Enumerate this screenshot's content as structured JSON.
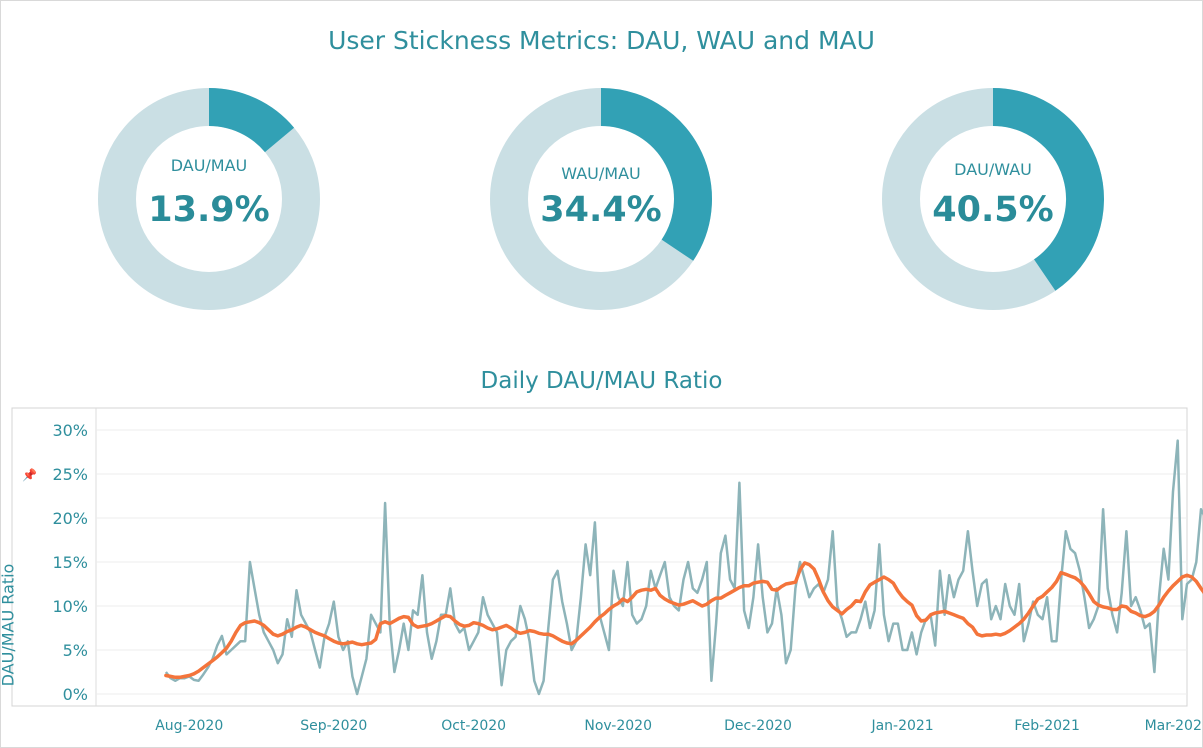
{
  "dashboard": {
    "title": "User Stickness Metrics: DAU, WAU and MAU"
  },
  "donuts": [
    {
      "label": "DAU/MAU",
      "value_text": "13.9%",
      "fraction": 0.139
    },
    {
      "label": "WAU/MAU",
      "value_text": "34.4%",
      "fraction": 0.344
    },
    {
      "label": "DAU/WAU",
      "value_text": "40.5%",
      "fraction": 0.405
    }
  ],
  "colors": {
    "accent": "#32a1b5",
    "track": "#cadfe4",
    "raw_line": "#8db4b9",
    "avg_line": "#f4743b",
    "text": "#2f8f9d"
  },
  "icons": {
    "pin": "pin-icon"
  },
  "chart_data": {
    "type": "line",
    "title": "Daily DAU/MAU Ratio",
    "xlabel": "",
    "ylabel": "DAU/MAU Ratio",
    "x_start": "2020-07-27",
    "x_tick_labels": [
      "Aug-2020",
      "Sep-2020",
      "Oct-2020",
      "Nov-2020",
      "Dec-2020",
      "Jan-2021",
      "Feb-2021",
      "Mar-2021"
    ],
    "x_tick_dates": [
      "2020-08-01",
      "2020-09-01",
      "2020-10-01",
      "2020-11-01",
      "2020-12-01",
      "2021-01-01",
      "2021-02-01",
      "2021-03-01"
    ],
    "xlim": [
      "2020-07-12",
      "2021-03-03"
    ],
    "y_tick_labels": [
      "0%",
      "5%",
      "10%",
      "15%",
      "20%",
      "25%",
      "30%"
    ],
    "y_ticks": [
      0,
      5,
      10,
      15,
      20,
      25,
      30
    ],
    "ylim": [
      0,
      30
    ],
    "grid": true,
    "series": [
      {
        "name": "",
        "values": [
          2.5,
          1.8,
          1.5,
          1.8,
          1.8,
          2.0,
          1.6,
          1.5,
          2.2,
          3.0,
          4.0,
          5.5,
          6.6,
          4.5,
          5.0,
          5.5,
          6.0,
          6.0,
          15.0,
          12.0,
          9.0,
          7.0,
          6.0,
          5.0,
          3.5,
          4.5,
          8.5,
          6.5,
          11.8,
          9.0,
          8.0,
          7.0,
          5.0,
          3.0,
          6.5,
          8.0,
          10.5,
          6.5,
          5.0,
          6.0,
          2.0,
          0.0,
          2.0,
          4.0,
          9.0,
          8.0,
          7.0,
          21.7,
          8.0,
          2.5,
          5.0,
          8.0,
          5.0,
          9.5,
          9.0,
          13.5,
          7.0,
          4.0,
          6.0,
          9.0,
          9.0,
          12.0,
          8.0,
          7.0,
          7.5,
          5.0,
          6.0,
          7.0,
          11.0,
          9.0,
          8.0,
          7.0,
          1.0,
          5.0,
          6.0,
          6.5,
          10.0,
          8.5,
          6.0,
          1.5,
          0.0,
          1.5,
          7.5,
          13.0,
          14.0,
          10.5,
          8.0,
          5.0,
          6.0,
          11.0,
          17.0,
          13.5,
          19.5,
          9.0,
          7.0,
          5.0,
          14.0,
          11.0,
          10.0,
          15.0,
          9.0,
          8.0,
          8.5,
          10.0,
          14.0,
          12.0,
          13.5,
          15.0,
          11.0,
          10.0,
          9.5,
          13.0,
          15.0,
          12.0,
          11.5,
          13.0,
          15.0,
          1.5,
          8.0,
          16.0,
          18.0,
          13.0,
          12.0,
          24.0,
          9.5,
          7.5,
          11.0,
          17.0,
          11.0,
          7.0,
          8.0,
          12.0,
          9.0,
          3.5,
          5.0,
          12.0,
          15.0,
          13.0,
          11.0,
          12.0,
          12.5,
          11.5,
          13.0,
          18.5,
          10.0,
          8.5,
          6.5,
          7.0,
          7.0,
          8.5,
          10.5,
          7.5,
          9.5,
          17.0,
          9.0,
          6.0,
          8.0,
          8.0,
          5.0,
          5.0,
          7.0,
          4.5,
          7.0,
          8.5,
          9.0,
          5.5,
          14.0,
          9.0,
          13.5,
          11.0,
          13.0,
          14.0,
          18.5,
          14.0,
          10.0,
          12.5,
          13.0,
          8.5,
          10.0,
          8.5,
          12.5,
          10.0,
          9.0,
          12.5,
          6.0,
          8.0,
          10.5,
          9.0,
          8.5,
          11.0,
          6.0,
          6.0,
          13.0,
          18.5,
          16.5,
          16.0,
          14.0,
          11.0,
          7.5,
          8.5,
          10.0,
          21.0,
          12.0,
          9.0,
          7.0,
          11.5,
          18.5,
          10.0,
          11.0,
          9.5,
          7.5,
          8.0,
          2.5,
          11.0,
          16.5,
          13.0,
          23.0,
          28.8,
          8.5,
          12.5,
          13.0,
          15.0,
          21.0,
          20.0,
          15.0,
          21.5,
          20.0
        ]
      },
      {
        "name": "",
        "values": [
          2.1,
          2.0,
          1.9,
          1.9,
          2.0,
          2.1,
          2.3,
          2.6,
          3.0,
          3.4,
          3.8,
          4.2,
          4.7,
          5.2,
          6.0,
          7.0,
          7.8,
          8.1,
          8.2,
          8.3,
          8.1,
          7.8,
          7.3,
          6.8,
          6.6,
          6.8,
          7.1,
          7.3,
          7.6,
          7.8,
          7.6,
          7.3,
          7.0,
          6.8,
          6.6,
          6.3,
          6.0,
          5.8,
          5.7,
          5.8,
          5.9,
          5.7,
          5.6,
          5.7,
          5.8,
          6.2,
          8.0,
          8.2,
          8.0,
          8.3,
          8.6,
          8.8,
          8.7,
          7.9,
          7.6,
          7.7,
          7.8,
          8.0,
          8.3,
          8.6,
          8.9,
          8.8,
          8.3,
          7.9,
          7.7,
          7.8,
          8.1,
          8.0,
          7.8,
          7.5,
          7.3,
          7.4,
          7.6,
          7.8,
          7.5,
          7.1,
          6.9,
          7.0,
          7.2,
          7.1,
          6.9,
          6.8,
          6.8,
          6.6,
          6.3,
          6.0,
          5.8,
          5.7,
          6.1,
          6.6,
          7.1,
          7.6,
          8.2,
          8.7,
          9.1,
          9.6,
          10.0,
          10.3,
          10.8,
          10.5,
          11.0,
          11.6,
          11.8,
          11.9,
          11.8,
          12.0,
          11.2,
          10.8,
          10.5,
          10.3,
          10.1,
          10.2,
          10.4,
          10.6,
          10.3,
          10.0,
          10.2,
          10.6,
          10.9,
          10.9,
          11.2,
          11.5,
          11.8,
          12.1,
          12.3,
          12.3,
          12.6,
          12.7,
          12.8,
          12.7,
          11.9,
          11.8,
          12.2,
          12.5,
          12.6,
          12.7,
          14.1,
          14.9,
          14.7,
          14.2,
          13.0,
          11.6,
          10.6,
          9.9,
          9.5,
          9.1,
          9.6,
          10.0,
          10.6,
          10.5,
          11.6,
          12.4,
          12.7,
          13.0,
          13.3,
          13.0,
          12.6,
          11.7,
          11.0,
          10.5,
          10.1,
          8.9,
          8.3,
          8.4,
          9.0,
          9.2,
          9.3,
          9.4,
          9.2,
          9.0,
          8.8,
          8.6,
          8.0,
          7.6,
          6.8,
          6.6,
          6.7,
          6.7,
          6.8,
          6.7,
          6.9,
          7.2,
          7.6,
          8.0,
          8.5,
          9.2,
          10.0,
          10.8,
          11.1,
          11.6,
          12.1,
          12.8,
          13.8,
          13.6,
          13.4,
          13.2,
          12.8,
          12.2,
          11.4,
          10.5,
          10.1,
          9.9,
          9.8,
          9.6,
          9.6,
          10.0,
          9.9,
          9.4,
          9.2,
          8.9,
          8.8,
          9.0,
          9.4,
          10.1,
          11.0,
          11.7,
          12.3,
          12.8,
          13.3,
          13.5,
          13.3,
          12.8,
          12.0,
          11.3,
          11.1,
          11.6,
          12.3
        ]
      }
    ]
  }
}
